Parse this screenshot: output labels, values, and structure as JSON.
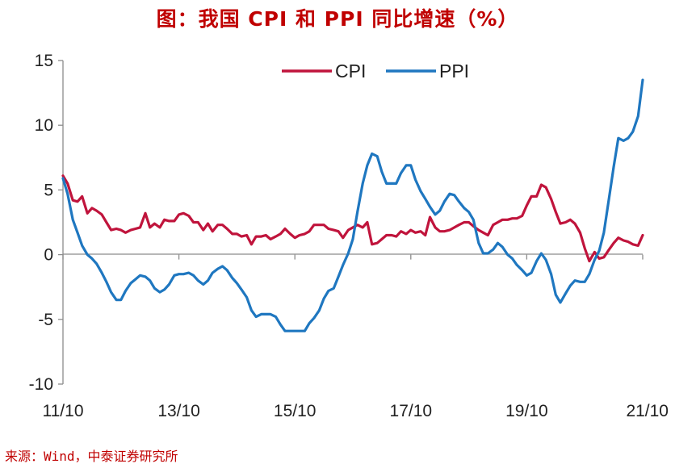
{
  "chart_data": {
    "type": "line",
    "title": "图：我国 CPI 和 PPI 同比增速（%）",
    "source": "来源：Wind，中泰证券研究所",
    "ylim": [
      -10,
      15
    ],
    "yticks": [
      "-10",
      "-5",
      "0",
      "5",
      "10",
      "15"
    ],
    "ytick_values": [
      -10,
      -5,
      0,
      5,
      10,
      15
    ],
    "xlim": [
      2011.75,
      2021.75
    ],
    "xticks": [
      "11/10",
      "13/10",
      "15/10",
      "17/10",
      "19/10",
      "21/10"
    ],
    "xtick_values": [
      2011.75,
      2013.75,
      2015.75,
      2017.75,
      2019.75,
      2021.75
    ],
    "grid": false,
    "legend": "top-center",
    "series": [
      {
        "name": "CPI",
        "color": "#c0143c",
        "points": [
          [
            2011.75,
            6.1
          ],
          [
            2011.83,
            5.5
          ],
          [
            2011.92,
            4.2
          ],
          [
            2012.0,
            4.1
          ],
          [
            2012.08,
            4.5
          ],
          [
            2012.17,
            3.2
          ],
          [
            2012.25,
            3.6
          ],
          [
            2012.33,
            3.4
          ],
          [
            2012.42,
            3.1
          ],
          [
            2012.5,
            2.5
          ],
          [
            2012.58,
            1.9
          ],
          [
            2012.67,
            2.0
          ],
          [
            2012.75,
            1.9
          ],
          [
            2012.83,
            1.7
          ],
          [
            2012.92,
            1.9
          ],
          [
            2013.0,
            2.0
          ],
          [
            2013.08,
            2.1
          ],
          [
            2013.17,
            3.2
          ],
          [
            2013.25,
            2.1
          ],
          [
            2013.33,
            2.4
          ],
          [
            2013.42,
            2.1
          ],
          [
            2013.5,
            2.7
          ],
          [
            2013.58,
            2.6
          ],
          [
            2013.67,
            2.6
          ],
          [
            2013.75,
            3.1
          ],
          [
            2013.83,
            3.2
          ],
          [
            2013.92,
            3.0
          ],
          [
            2014.0,
            2.5
          ],
          [
            2014.08,
            2.5
          ],
          [
            2014.17,
            1.9
          ],
          [
            2014.25,
            2.4
          ],
          [
            2014.33,
            1.8
          ],
          [
            2014.42,
            2.3
          ],
          [
            2014.5,
            2.3
          ],
          [
            2014.58,
            2.0
          ],
          [
            2014.67,
            1.6
          ],
          [
            2014.75,
            1.6
          ],
          [
            2014.83,
            1.4
          ],
          [
            2014.92,
            1.5
          ],
          [
            2015.0,
            0.8
          ],
          [
            2015.08,
            1.4
          ],
          [
            2015.17,
            1.4
          ],
          [
            2015.25,
            1.5
          ],
          [
            2015.33,
            1.2
          ],
          [
            2015.42,
            1.4
          ],
          [
            2015.5,
            1.6
          ],
          [
            2015.58,
            2.0
          ],
          [
            2015.67,
            1.6
          ],
          [
            2015.75,
            1.3
          ],
          [
            2015.83,
            1.5
          ],
          [
            2015.92,
            1.6
          ],
          [
            2016.0,
            1.8
          ],
          [
            2016.08,
            2.3
          ],
          [
            2016.17,
            2.3
          ],
          [
            2016.25,
            2.3
          ],
          [
            2016.33,
            2.0
          ],
          [
            2016.42,
            1.9
          ],
          [
            2016.5,
            1.8
          ],
          [
            2016.58,
            1.3
          ],
          [
            2016.67,
            1.9
          ],
          [
            2016.75,
            2.1
          ],
          [
            2016.83,
            2.3
          ],
          [
            2016.92,
            2.1
          ],
          [
            2017.0,
            2.5
          ],
          [
            2017.08,
            0.8
          ],
          [
            2017.17,
            0.9
          ],
          [
            2017.25,
            1.2
          ],
          [
            2017.33,
            1.5
          ],
          [
            2017.42,
            1.5
          ],
          [
            2017.5,
            1.4
          ],
          [
            2017.58,
            1.8
          ],
          [
            2017.67,
            1.6
          ],
          [
            2017.75,
            1.9
          ],
          [
            2017.83,
            1.7
          ],
          [
            2017.92,
            1.8
          ],
          [
            2018.0,
            1.5
          ],
          [
            2018.08,
            2.9
          ],
          [
            2018.17,
            2.1
          ],
          [
            2018.25,
            1.8
          ],
          [
            2018.33,
            1.8
          ],
          [
            2018.42,
            1.9
          ],
          [
            2018.5,
            2.1
          ],
          [
            2018.58,
            2.3
          ],
          [
            2018.67,
            2.5
          ],
          [
            2018.75,
            2.5
          ],
          [
            2018.83,
            2.2
          ],
          [
            2018.92,
            1.9
          ],
          [
            2019.0,
            1.7
          ],
          [
            2019.08,
            1.5
          ],
          [
            2019.17,
            2.3
          ],
          [
            2019.25,
            2.5
          ],
          [
            2019.33,
            2.7
          ],
          [
            2019.42,
            2.7
          ],
          [
            2019.5,
            2.8
          ],
          [
            2019.58,
            2.8
          ],
          [
            2019.67,
            3.0
          ],
          [
            2019.75,
            3.8
          ],
          [
            2019.83,
            4.5
          ],
          [
            2019.92,
            4.5
          ],
          [
            2020.0,
            5.4
          ],
          [
            2020.08,
            5.2
          ],
          [
            2020.17,
            4.3
          ],
          [
            2020.25,
            3.3
          ],
          [
            2020.33,
            2.4
          ],
          [
            2020.42,
            2.5
          ],
          [
            2020.5,
            2.7
          ],
          [
            2020.58,
            2.4
          ],
          [
            2020.67,
            1.7
          ],
          [
            2020.75,
            0.5
          ],
          [
            2020.83,
            -0.5
          ],
          [
            2020.92,
            0.2
          ],
          [
            2021.0,
            -0.3
          ],
          [
            2021.08,
            -0.2
          ],
          [
            2021.17,
            0.4
          ],
          [
            2021.25,
            0.9
          ],
          [
            2021.33,
            1.3
          ],
          [
            2021.42,
            1.1
          ],
          [
            2021.5,
            1.0
          ],
          [
            2021.58,
            0.8
          ],
          [
            2021.67,
            0.7
          ],
          [
            2021.75,
            1.5
          ]
        ]
      },
      {
        "name": "PPI",
        "color": "#1f77c0",
        "points": [
          [
            2011.75,
            5.9
          ],
          [
            2011.83,
            4.7
          ],
          [
            2011.92,
            2.7
          ],
          [
            2012.0,
            1.7
          ],
          [
            2012.08,
            0.7
          ],
          [
            2012.17,
            0.0
          ],
          [
            2012.25,
            -0.3
          ],
          [
            2012.33,
            -0.7
          ],
          [
            2012.42,
            -1.4
          ],
          [
            2012.5,
            -2.1
          ],
          [
            2012.58,
            -2.9
          ],
          [
            2012.67,
            -3.5
          ],
          [
            2012.75,
            -3.5
          ],
          [
            2012.83,
            -2.8
          ],
          [
            2012.92,
            -2.2
          ],
          [
            2013.0,
            -1.9
          ],
          [
            2013.08,
            -1.6
          ],
          [
            2013.17,
            -1.7
          ],
          [
            2013.25,
            -2.0
          ],
          [
            2013.33,
            -2.6
          ],
          [
            2013.42,
            -2.9
          ],
          [
            2013.5,
            -2.7
          ],
          [
            2013.58,
            -2.3
          ],
          [
            2013.67,
            -1.6
          ],
          [
            2013.75,
            -1.5
          ],
          [
            2013.83,
            -1.5
          ],
          [
            2013.92,
            -1.4
          ],
          [
            2014.0,
            -1.6
          ],
          [
            2014.08,
            -2.0
          ],
          [
            2014.17,
            -2.3
          ],
          [
            2014.25,
            -2.0
          ],
          [
            2014.33,
            -1.4
          ],
          [
            2014.42,
            -1.1
          ],
          [
            2014.5,
            -0.9
          ],
          [
            2014.58,
            -1.2
          ],
          [
            2014.67,
            -1.8
          ],
          [
            2014.75,
            -2.2
          ],
          [
            2014.83,
            -2.7
          ],
          [
            2014.92,
            -3.3
          ],
          [
            2015.0,
            -4.3
          ],
          [
            2015.08,
            -4.8
          ],
          [
            2015.17,
            -4.6
          ],
          [
            2015.25,
            -4.6
          ],
          [
            2015.33,
            -4.6
          ],
          [
            2015.42,
            -4.8
          ],
          [
            2015.5,
            -5.4
          ],
          [
            2015.58,
            -5.9
          ],
          [
            2015.67,
            -5.9
          ],
          [
            2015.75,
            -5.9
          ],
          [
            2015.83,
            -5.9
          ],
          [
            2015.92,
            -5.9
          ],
          [
            2016.0,
            -5.3
          ],
          [
            2016.08,
            -4.9
          ],
          [
            2016.17,
            -4.3
          ],
          [
            2016.25,
            -3.4
          ],
          [
            2016.33,
            -2.8
          ],
          [
            2016.42,
            -2.6
          ],
          [
            2016.5,
            -1.7
          ],
          [
            2016.58,
            -0.8
          ],
          [
            2016.67,
            0.1
          ],
          [
            2016.75,
            1.2
          ],
          [
            2016.83,
            3.3
          ],
          [
            2016.92,
            5.5
          ],
          [
            2017.0,
            6.9
          ],
          [
            2017.08,
            7.8
          ],
          [
            2017.17,
            7.6
          ],
          [
            2017.25,
            6.4
          ],
          [
            2017.33,
            5.5
          ],
          [
            2017.42,
            5.5
          ],
          [
            2017.5,
            5.5
          ],
          [
            2017.58,
            6.3
          ],
          [
            2017.67,
            6.9
          ],
          [
            2017.75,
            6.9
          ],
          [
            2017.83,
            5.8
          ],
          [
            2017.92,
            4.9
          ],
          [
            2018.0,
            4.3
          ],
          [
            2018.08,
            3.7
          ],
          [
            2018.17,
            3.1
          ],
          [
            2018.25,
            3.4
          ],
          [
            2018.33,
            4.1
          ],
          [
            2018.42,
            4.7
          ],
          [
            2018.5,
            4.6
          ],
          [
            2018.58,
            4.1
          ],
          [
            2018.67,
            3.6
          ],
          [
            2018.75,
            3.3
          ],
          [
            2018.83,
            2.7
          ],
          [
            2018.92,
            0.9
          ],
          [
            2019.0,
            0.1
          ],
          [
            2019.08,
            0.1
          ],
          [
            2019.17,
            0.4
          ],
          [
            2019.25,
            0.9
          ],
          [
            2019.33,
            0.6
          ],
          [
            2019.42,
            0.0
          ],
          [
            2019.5,
            -0.3
          ],
          [
            2019.58,
            -0.8
          ],
          [
            2019.67,
            -1.2
          ],
          [
            2019.75,
            -1.6
          ],
          [
            2019.83,
            -1.4
          ],
          [
            2019.92,
            -0.5
          ],
          [
            2020.0,
            0.1
          ],
          [
            2020.08,
            -0.4
          ],
          [
            2020.17,
            -1.5
          ],
          [
            2020.25,
            -3.1
          ],
          [
            2020.33,
            -3.7
          ],
          [
            2020.42,
            -3.0
          ],
          [
            2020.5,
            -2.4
          ],
          [
            2020.58,
            -2.0
          ],
          [
            2020.67,
            -2.1
          ],
          [
            2020.75,
            -2.1
          ],
          [
            2020.83,
            -1.5
          ],
          [
            2020.92,
            -0.4
          ],
          [
            2021.0,
            0.3
          ],
          [
            2021.08,
            1.7
          ],
          [
            2021.17,
            4.4
          ],
          [
            2021.25,
            6.8
          ],
          [
            2021.33,
            9.0
          ],
          [
            2021.42,
            8.8
          ],
          [
            2021.5,
            9.0
          ],
          [
            2021.58,
            9.5
          ],
          [
            2021.67,
            10.7
          ],
          [
            2021.75,
            13.5
          ]
        ]
      }
    ]
  }
}
